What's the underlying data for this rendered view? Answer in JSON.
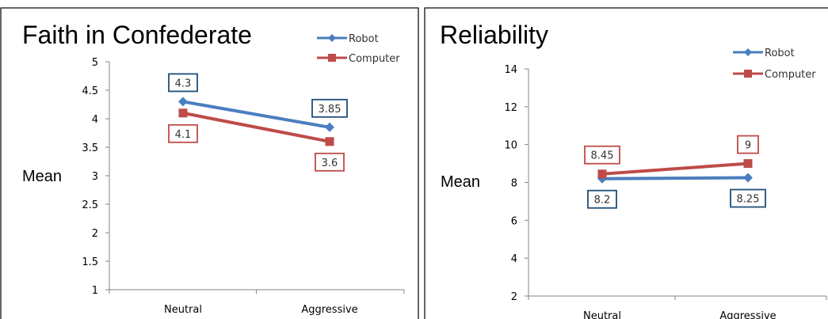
{
  "chart_data": [
    {
      "type": "line",
      "title": "Faith in Confederate",
      "xlabel": "",
      "ylabel": "Mean",
      "categories": [
        "Neutral",
        "Aggressive"
      ],
      "ylim": [
        1,
        5
      ],
      "yticks": [
        "1",
        "1.5",
        "2",
        "2.5",
        "3",
        "3.5",
        "4",
        "4.5",
        "5"
      ],
      "legend_position": "top-right",
      "series": [
        {
          "name": "Robot",
          "values": [
            4.3,
            3.85
          ],
          "labels": [
            "4.3",
            "3.85"
          ],
          "color": "#4a7ebf",
          "marker": "diamond"
        },
        {
          "name": "Computer",
          "values": [
            4.1,
            3.6
          ],
          "labels": [
            "4.1",
            "3.6"
          ],
          "color": "#be4b48",
          "marker": "square"
        }
      ]
    },
    {
      "type": "line",
      "title": "Reliability",
      "xlabel": "",
      "ylabel": "Mean",
      "categories": [
        "Neutral",
        "Aggressive"
      ],
      "ylim": [
        2,
        14
      ],
      "yticks": [
        "2",
        "4",
        "6",
        "8",
        "10",
        "12",
        "14"
      ],
      "legend_position": "top-right",
      "series": [
        {
          "name": "Robot",
          "values": [
            8.2,
            8.25
          ],
          "labels": [
            "8.2",
            "8.25"
          ],
          "color": "#4a7ebf",
          "marker": "diamond"
        },
        {
          "name": "Computer",
          "values": [
            8.45,
            9
          ],
          "labels": [
            "8.45",
            "9"
          ],
          "color": "#be4b48",
          "marker": "square"
        }
      ]
    }
  ]
}
